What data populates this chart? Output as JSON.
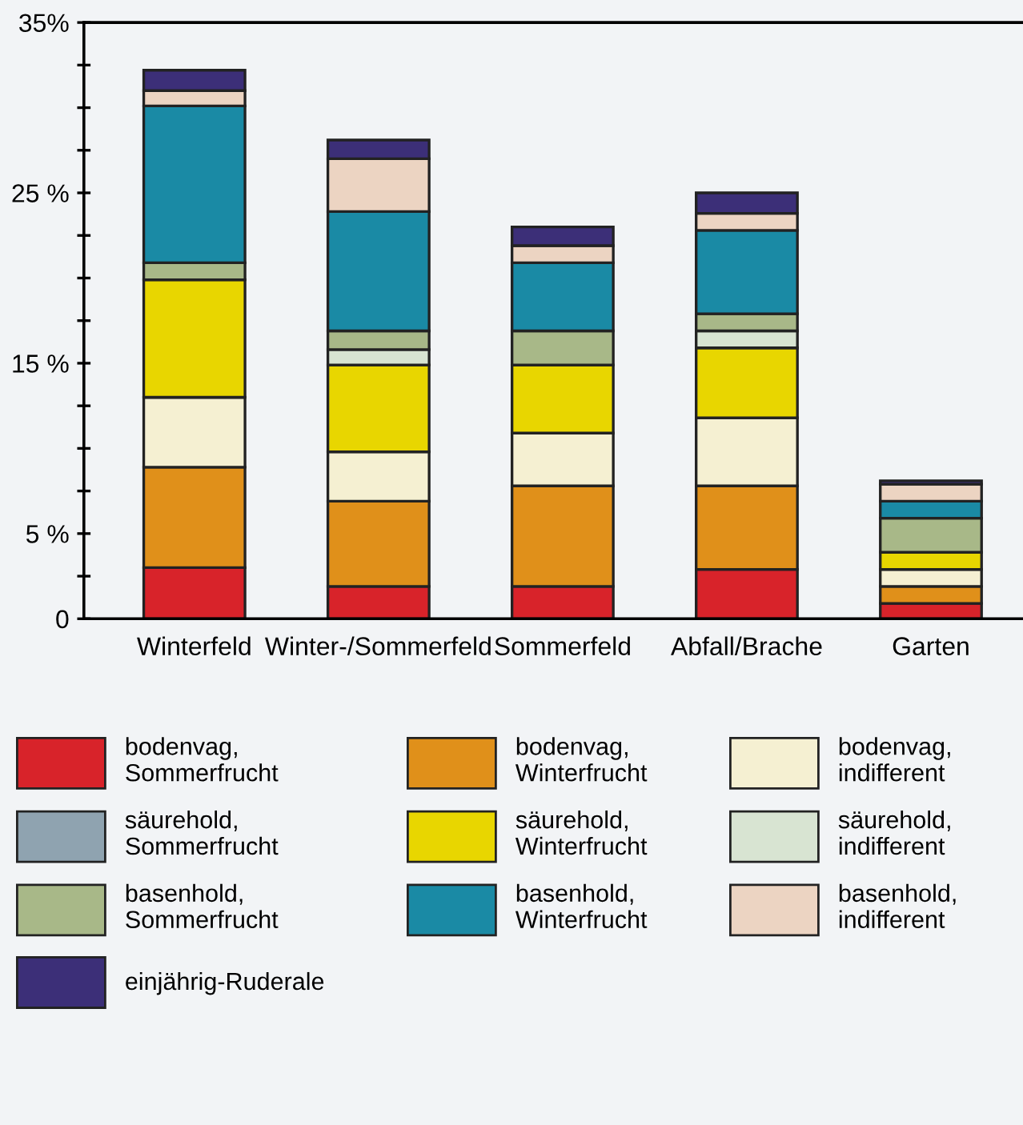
{
  "chart_data": {
    "type": "bar",
    "stacked": true,
    "categories": [
      "Winterfeld",
      "Winter-/Sommerfeld",
      "Sommerfeld",
      "Abfall/Brache",
      "Garten"
    ],
    "series": [
      {
        "name": "bodenvag,\nSommerfrucht",
        "color": "#d8232a",
        "values": [
          3.0,
          1.9,
          1.9,
          2.9,
          0.9
        ]
      },
      {
        "name": "bodenvag,\nWinterfrucht",
        "color": "#e0901a",
        "values": [
          5.9,
          5.0,
          5.9,
          4.9,
          1.0
        ]
      },
      {
        "name": "bodenvag,\nindifferent",
        "color": "#f5f0d2",
        "values": [
          4.1,
          2.9,
          3.1,
          4.0,
          1.0
        ]
      },
      {
        "name": "säurehold,\nSommerfrucht",
        "color": "#8fa3b0",
        "values": [
          0,
          0,
          0,
          0,
          0
        ]
      },
      {
        "name": "säurehold,\nWinterfrucht",
        "color": "#e8d600",
        "values": [
          6.9,
          5.1,
          4.0,
          4.1,
          1.0
        ]
      },
      {
        "name": "säurehold,\nindifferent",
        "color": "#d8e4d2",
        "values": [
          0,
          0.9,
          0,
          1.0,
          0
        ]
      },
      {
        "name": "basenhold,\nSommerfrucht",
        "color": "#a8b888",
        "values": [
          1.0,
          1.1,
          2.0,
          1.0,
          2.0
        ]
      },
      {
        "name": "basenhold,\nWinterfrucht",
        "color": "#1a8aa5",
        "values": [
          9.2,
          7.0,
          4.0,
          4.9,
          1.0
        ]
      },
      {
        "name": "basenhold,\nindifferent",
        "color": "#ecd4c2",
        "values": [
          0.9,
          3.1,
          1.0,
          1.0,
          1.0
        ]
      },
      {
        "name": "einjährig-Ruderale",
        "color": "#3c2f78",
        "values": [
          1.2,
          1.1,
          1.1,
          1.2,
          0.2
        ]
      }
    ],
    "ylim": [
      0,
      35
    ],
    "yticks": [
      0,
      {
        "value": 2.5,
        "label": null
      },
      {
        "value": 5,
        "label": "5 %"
      },
      {
        "value": 7.5,
        "label": null
      },
      {
        "value": 10,
        "label": null
      },
      {
        "value": 12.5,
        "label": null
      },
      {
        "value": 15,
        "label": "15 %"
      },
      {
        "value": 17.5,
        "label": null
      },
      {
        "value": 20,
        "label": null
      },
      {
        "value": 22.5,
        "label": null
      },
      {
        "value": 25,
        "label": "25 %"
      },
      {
        "value": 27.5,
        "label": null
      },
      {
        "value": 30,
        "label": null
      },
      {
        "value": 32.5,
        "label": null
      },
      {
        "value": 35,
        "label": "35%"
      }
    ],
    "grid": false,
    "legend": "bottom"
  }
}
